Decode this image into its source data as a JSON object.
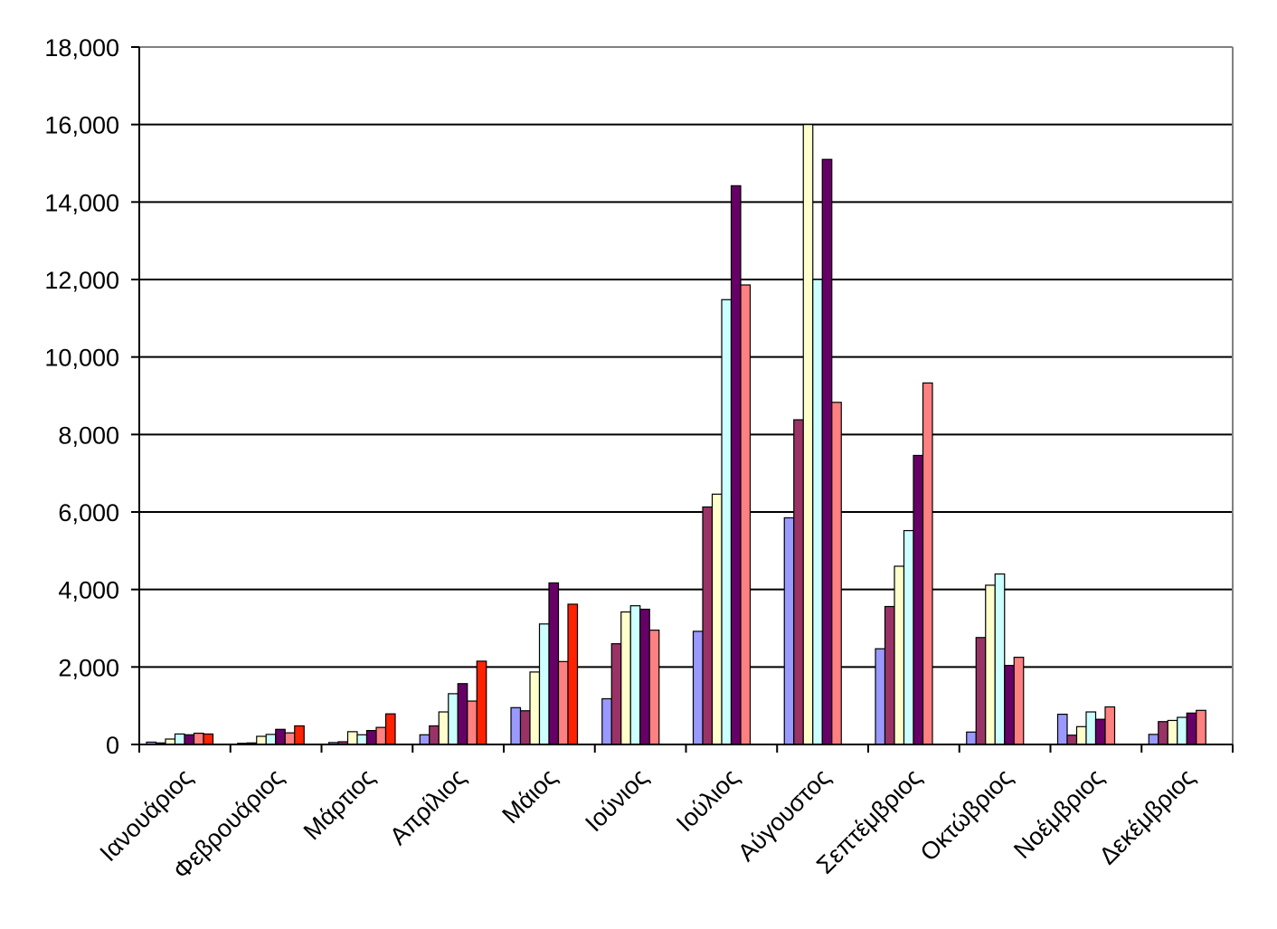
{
  "chart_data": {
    "type": "bar",
    "title": "",
    "xlabel": "",
    "ylabel": "",
    "ylim": [
      0,
      18000
    ],
    "y_ticks": [
      "0",
      "2,000",
      "4,000",
      "6,000",
      "8,000",
      "10,000",
      "12,000",
      "14,000",
      "16,000",
      "18,000"
    ],
    "y_tick_values": [
      0,
      2000,
      4000,
      6000,
      8000,
      10000,
      12000,
      14000,
      16000,
      18000
    ],
    "grid": true,
    "legend": "none",
    "categories": [
      "Ιανουάριος",
      "Φεβρουάριος",
      "Μάρτιος",
      "Απρίλιος",
      "Μάιος",
      "Ιούνιος",
      "Ιούλιος",
      "Αύγουστος",
      "Σεπτέμβριος",
      "Οκτώβριος",
      "Νοέμβριος",
      "Δεκέμβριος"
    ],
    "series": [
      {
        "color": "#9999ff",
        "values": [
          60,
          30,
          50,
          250,
          950,
          1180,
          2920,
          5850,
          2470,
          320,
          780,
          260
        ]
      },
      {
        "color": "#993366",
        "values": [
          40,
          40,
          70,
          480,
          870,
          2600,
          6130,
          8380,
          3560,
          2760,
          240,
          590
        ]
      },
      {
        "color": "#ffffcc",
        "values": [
          140,
          210,
          330,
          840,
          1870,
          3420,
          6460,
          16000,
          4600,
          4110,
          460,
          620
        ]
      },
      {
        "color": "#ccffff",
        "values": [
          270,
          260,
          250,
          1310,
          3110,
          3580,
          11480,
          12000,
          5520,
          4400,
          840,
          700
        ]
      },
      {
        "color": "#660066",
        "values": [
          250,
          390,
          360,
          1570,
          4170,
          3490,
          14420,
          15100,
          7460,
          2040,
          650,
          810
        ]
      },
      {
        "color": "#ff8080",
        "values": [
          290,
          300,
          440,
          1120,
          2140,
          2950,
          11860,
          8830,
          9330,
          2250,
          970,
          880
        ]
      },
      {
        "color": "#ff2200",
        "values": [
          270,
          480,
          790,
          2150,
          3620,
          null,
          null,
          null,
          null,
          null,
          null,
          null
        ]
      }
    ]
  }
}
